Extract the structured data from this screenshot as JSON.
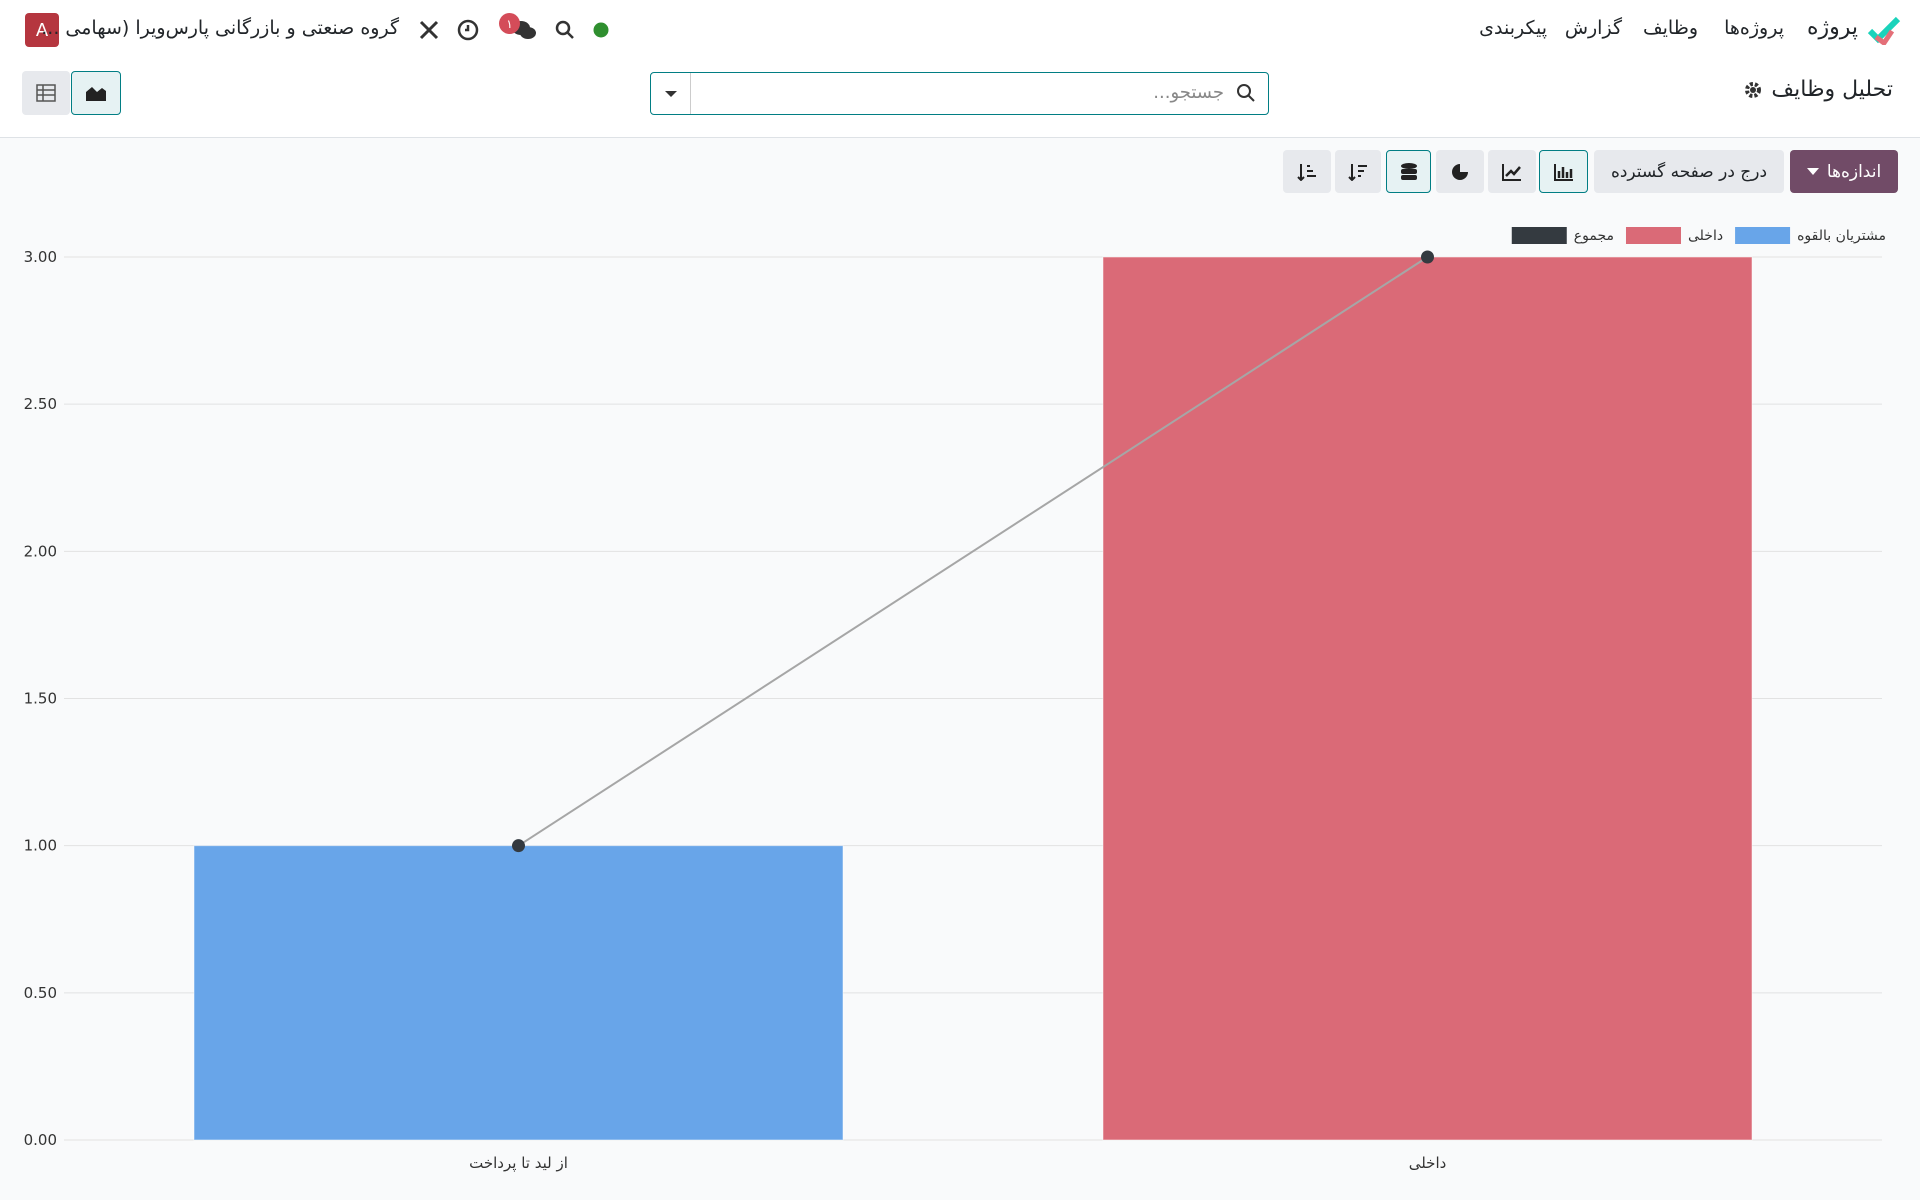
{
  "navbar": {
    "app": "پروژه",
    "menus": [
      "پروژه‌ها",
      "وظایف",
      "گزارش",
      "پیکربندی"
    ],
    "company": "گروه صنعتی و بازرگانی پارس‌ویرا (سهامی ...",
    "badge": "۱",
    "avatar": "A"
  },
  "control_panel": {
    "title": "تحلیل وظایف",
    "search_placeholder": "جستجو...",
    "measures": "اندازه‌ها",
    "insert_spreadsheet": "درج در صفحه گسترده"
  },
  "chart_data": {
    "type": "bar",
    "stacked": true,
    "categories": [
      "از لید تا پرداخت",
      "داخلی"
    ],
    "series": [
      {
        "name": "مشتریان بالقوه",
        "color": "#68a5e9",
        "values": [
          1,
          null
        ]
      },
      {
        "name": "داخلی",
        "color": "#da6a77",
        "values": [
          null,
          3
        ]
      },
      {
        "name": "مجموع",
        "color": "#343a40",
        "type": "line",
        "values": [
          1,
          3
        ]
      }
    ],
    "ylim": [
      0,
      3
    ],
    "yticks": [
      {
        "value": 0,
        "label": "0.00"
      },
      {
        "value": 0.5,
        "label": "0.50"
      },
      {
        "value": 1,
        "label": "1.00"
      },
      {
        "value": 1.5,
        "label": "1.50"
      },
      {
        "value": 2,
        "label": "2.00"
      },
      {
        "value": 2.5,
        "label": "2.50"
      },
      {
        "value": 3,
        "label": "3.00"
      }
    ],
    "grid": true,
    "legend": "top-right"
  }
}
